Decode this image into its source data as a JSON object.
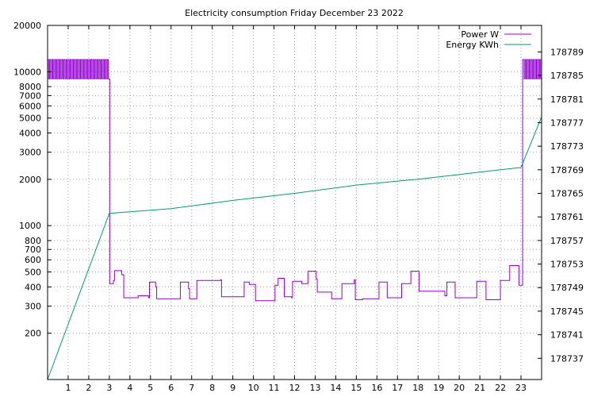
{
  "chart_data": {
    "type": "line",
    "title": "Electricity consumption Friday December 23 2022",
    "grid": true,
    "legend_position": "top-right",
    "x_axis": {
      "range": [
        0,
        24
      ],
      "ticks": [
        1,
        2,
        3,
        4,
        5,
        6,
        7,
        8,
        9,
        10,
        11,
        12,
        13,
        14,
        15,
        16,
        17,
        18,
        19,
        20,
        21,
        22,
        23
      ]
    },
    "y_axis_left": {
      "scale": "log",
      "range": [
        100,
        20000
      ],
      "ticks": [
        {
          "value": 200,
          "label": "200"
        },
        {
          "value": 300,
          "label": "300"
        },
        {
          "value": 400,
          "label": "400"
        },
        {
          "value": 500,
          "label": "500"
        },
        {
          "value": 600,
          "label": "600"
        },
        {
          "value": 700,
          "label": "700"
        },
        {
          "value": 800,
          "label": "800"
        },
        {
          "value": 1000,
          "label": "1000"
        },
        {
          "value": 2000,
          "label": "2000"
        },
        {
          "value": 3000,
          "label": "3000"
        },
        {
          "value": 4000,
          "label": "4000"
        },
        {
          "value": 5000,
          "label": "5000"
        },
        {
          "value": 6000,
          "label": "6000"
        },
        {
          "value": 7000,
          "label": "7000"
        },
        {
          "value": 8000,
          "label": "8000"
        },
        {
          "value": 10000,
          "label": "10000"
        },
        {
          "value": 20000,
          "label": "20000"
        }
      ]
    },
    "y_axis_right": {
      "scale": "linear",
      "range": [
        178733.4,
        178793.5
      ],
      "ticks": [
        178737,
        178741,
        178745,
        178749,
        178753,
        178757,
        178761,
        178765,
        178769,
        178773,
        178777,
        178781,
        178785,
        178789
      ]
    },
    "series": [
      {
        "name": "Power W",
        "axis": "left",
        "color": "#9400d3",
        "style": "step",
        "points": [
          [
            0.0,
            12000
          ],
          [
            0.05,
            9000
          ],
          [
            0.1,
            12000
          ],
          [
            0.15,
            9000
          ],
          [
            0.2,
            12000
          ],
          [
            0.25,
            9000
          ],
          [
            0.3,
            12000
          ],
          [
            0.35,
            9000
          ],
          [
            0.4,
            12000
          ],
          [
            0.45,
            9000
          ],
          [
            0.5,
            12000
          ],
          [
            0.55,
            9000
          ],
          [
            0.6,
            12000
          ],
          [
            0.65,
            9000
          ],
          [
            0.7,
            12000
          ],
          [
            0.75,
            9000
          ],
          [
            0.8,
            12000
          ],
          [
            0.85,
            9000
          ],
          [
            0.9,
            12000
          ],
          [
            0.95,
            9000
          ],
          [
            1.0,
            12000
          ],
          [
            1.05,
            9000
          ],
          [
            1.1,
            12000
          ],
          [
            1.15,
            9000
          ],
          [
            1.2,
            12000
          ],
          [
            1.25,
            9000
          ],
          [
            1.3,
            12000
          ],
          [
            1.35,
            9000
          ],
          [
            1.4,
            12000
          ],
          [
            1.45,
            9000
          ],
          [
            1.5,
            12000
          ],
          [
            1.55,
            9000
          ],
          [
            1.6,
            12000
          ],
          [
            1.65,
            9000
          ],
          [
            1.7,
            12000
          ],
          [
            1.75,
            9000
          ],
          [
            1.8,
            12000
          ],
          [
            1.85,
            9000
          ],
          [
            1.9,
            12000
          ],
          [
            1.95,
            9000
          ],
          [
            2.0,
            12000
          ],
          [
            2.05,
            9000
          ],
          [
            2.1,
            12000
          ],
          [
            2.15,
            9000
          ],
          [
            2.2,
            12000
          ],
          [
            2.25,
            9000
          ],
          [
            2.3,
            12000
          ],
          [
            2.35,
            9000
          ],
          [
            2.4,
            12000
          ],
          [
            2.45,
            9000
          ],
          [
            2.5,
            12000
          ],
          [
            2.55,
            9000
          ],
          [
            2.6,
            12000
          ],
          [
            2.65,
            9000
          ],
          [
            2.7,
            12000
          ],
          [
            2.75,
            9000
          ],
          [
            2.8,
            12000
          ],
          [
            2.85,
            9000
          ],
          [
            2.9,
            12000
          ],
          [
            2.95,
            9000
          ],
          [
            3.0,
            9000
          ],
          [
            3.02,
            420
          ],
          [
            3.2,
            440
          ],
          [
            3.25,
            510
          ],
          [
            3.6,
            480
          ],
          [
            3.7,
            340
          ],
          [
            4.4,
            350
          ],
          [
            4.9,
            340
          ],
          [
            4.95,
            430
          ],
          [
            5.25,
            400
          ],
          [
            5.3,
            335
          ],
          [
            6.4,
            335
          ],
          [
            6.45,
            430
          ],
          [
            6.85,
            390
          ],
          [
            6.9,
            335
          ],
          [
            7.25,
            440
          ],
          [
            8.4,
            445
          ],
          [
            8.45,
            345
          ],
          [
            9.55,
            430
          ],
          [
            9.8,
            415
          ],
          [
            10.1,
            325
          ],
          [
            11.05,
            410
          ],
          [
            11.2,
            455
          ],
          [
            11.5,
            345
          ],
          [
            11.85,
            340
          ],
          [
            11.9,
            435
          ],
          [
            12.35,
            420
          ],
          [
            12.65,
            505
          ],
          [
            13.05,
            450
          ],
          [
            13.1,
            370
          ],
          [
            13.8,
            335
          ],
          [
            14.3,
            420
          ],
          [
            14.9,
            445
          ],
          [
            14.95,
            330
          ],
          [
            15.3,
            335
          ],
          [
            16.1,
            430
          ],
          [
            16.5,
            340
          ],
          [
            17.2,
            420
          ],
          [
            17.65,
            505
          ],
          [
            18.05,
            375
          ],
          [
            19.3,
            350
          ],
          [
            19.4,
            430
          ],
          [
            19.8,
            340
          ],
          [
            20.85,
            435
          ],
          [
            21.3,
            330
          ],
          [
            22.0,
            440
          ],
          [
            22.45,
            550
          ],
          [
            22.9,
            410
          ],
          [
            23.05,
            410
          ],
          [
            23.08,
            12000
          ],
          [
            23.15,
            9000
          ],
          [
            23.2,
            12000
          ],
          [
            23.25,
            9000
          ],
          [
            23.3,
            12000
          ],
          [
            23.35,
            9000
          ],
          [
            23.4,
            12000
          ],
          [
            23.45,
            9000
          ],
          [
            23.5,
            12000
          ],
          [
            23.55,
            9000
          ],
          [
            23.6,
            12000
          ],
          [
            23.65,
            9000
          ],
          [
            23.7,
            12000
          ],
          [
            23.75,
            9000
          ],
          [
            23.8,
            12000
          ],
          [
            23.85,
            9000
          ],
          [
            23.9,
            12000
          ],
          [
            23.95,
            9000
          ],
          [
            24.0,
            12000
          ]
        ]
      },
      {
        "name": "Energy KWh",
        "axis": "right",
        "color": "#009e73",
        "style": "line",
        "points": [
          [
            0.0,
            178733.4
          ],
          [
            3.0,
            178761.6
          ],
          [
            6.0,
            178762.4
          ],
          [
            9.0,
            178763.8
          ],
          [
            12.0,
            178765.0
          ],
          [
            15.0,
            178766.4
          ],
          [
            18.0,
            178767.4
          ],
          [
            21.0,
            178768.6
          ],
          [
            23.0,
            178769.4
          ],
          [
            24.0,
            178778.0
          ]
        ]
      }
    ]
  }
}
